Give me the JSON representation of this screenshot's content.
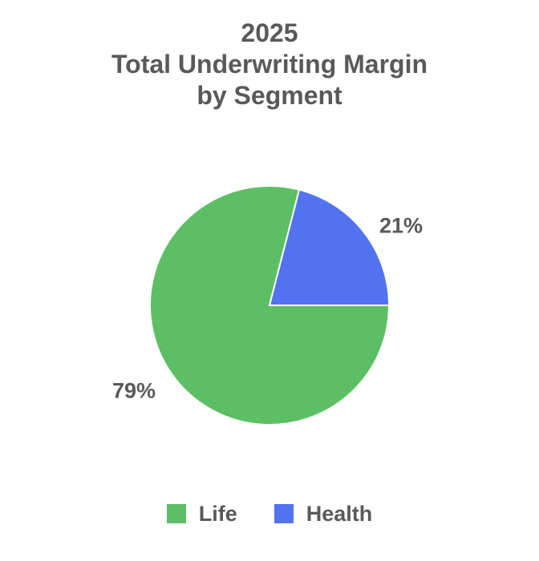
{
  "chart_data": {
    "type": "pie",
    "title": "2025 Total Underwriting Margin by Segment",
    "title_lines": [
      "2025",
      "Total Underwriting Margin",
      "by Segment"
    ],
    "categories": [
      "Life",
      "Health"
    ],
    "values": [
      79,
      21
    ],
    "unit": "%",
    "slice_labels": [
      "79%",
      "21%"
    ],
    "colors": [
      "#5CBF64",
      "#5372F0"
    ],
    "slice_border_color": "#FFFFFF",
    "text_color": "#58595B",
    "background_color": "#FFFFFF",
    "legend_position": "bottom",
    "start_angle_deg": 90,
    "direction": "clockwise"
  }
}
